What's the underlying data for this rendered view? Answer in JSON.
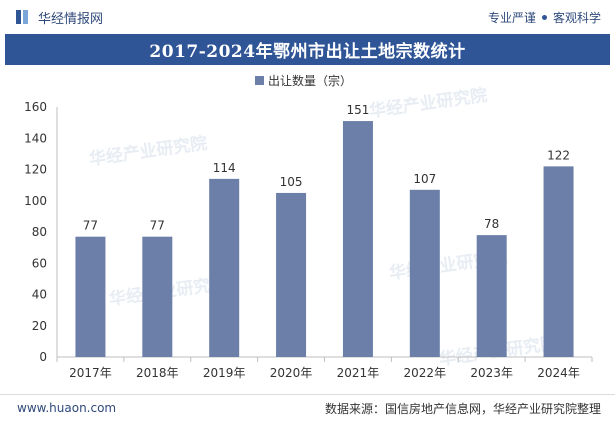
{
  "header": {
    "brand": "华经情报网",
    "tagline_left": "专业严谨",
    "tagline_right": "客观科学"
  },
  "watermark": "华经产业研究院",
  "footer": {
    "website": "www.huaon.com",
    "source": "数据来源：国信房地产信息网，华经产业研究院整理"
  },
  "colors": {
    "bar": "#6b7fa8",
    "title_bg": "#2f5597"
  },
  "chart_data": {
    "type": "bar",
    "title": "2017-2024年鄂州市出让土地宗数统计",
    "categories": [
      "2017年",
      "2018年",
      "2019年",
      "2020年",
      "2021年",
      "2022年",
      "2023年",
      "2024年"
    ],
    "series": [
      {
        "name": "出让数量（宗）",
        "values": [
          77,
          77,
          114,
          105,
          151,
          107,
          78,
          122
        ]
      }
    ],
    "xlabel": "",
    "ylabel": "",
    "ylim": [
      0,
      160
    ],
    "yticks": [
      0,
      20,
      40,
      60,
      80,
      100,
      120,
      140,
      160
    ],
    "legend_position": "top-center",
    "grid": false
  }
}
